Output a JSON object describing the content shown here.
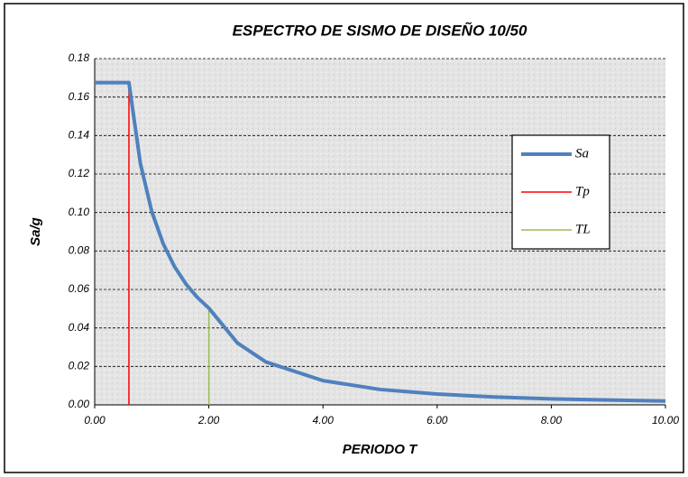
{
  "chart_data": {
    "type": "line",
    "title": "ESPECTRO DE SISMO DE DISEÑO 10/50",
    "x_label": "PERIODO T",
    "y_label": "Sa/g",
    "xlim": [
      0,
      10
    ],
    "ylim": [
      0,
      0.18
    ],
    "xticks": [
      {
        "value": 0,
        "label": "0.00"
      },
      {
        "value": 2,
        "label": "2.00"
      },
      {
        "value": 4,
        "label": "4.00"
      },
      {
        "value": 6,
        "label": "6.00"
      },
      {
        "value": 8,
        "label": "8.00"
      },
      {
        "value": 10,
        "label": "10.00"
      }
    ],
    "yticks": [
      {
        "value": 0,
        "label": "0.00"
      },
      {
        "value": 0.02,
        "label": "0.02"
      },
      {
        "value": 0.04,
        "label": "0.04"
      },
      {
        "value": 0.06,
        "label": "0.06"
      },
      {
        "value": 0.08,
        "label": "0.08"
      },
      {
        "value": 0.1,
        "label": "0.10"
      },
      {
        "value": 0.12,
        "label": "0.12"
      },
      {
        "value": 0.14,
        "label": "0.14"
      },
      {
        "value": 0.16,
        "label": "0.16"
      },
      {
        "value": 0.18,
        "label": "0.18"
      }
    ],
    "grid": true,
    "legend": "right",
    "series": [
      {
        "name": "Sa",
        "color": "#4f81bd",
        "width": 4,
        "x": [
          0,
          0.6,
          0.8,
          1.0,
          1.2,
          1.4,
          1.6,
          1.8,
          2.0,
          2.5,
          3,
          4,
          5,
          6,
          7,
          8,
          9,
          10
        ],
        "values": [
          0.1675,
          0.1675,
          0.1256,
          0.1005,
          0.0838,
          0.0718,
          0.0628,
          0.0558,
          0.0503,
          0.0322,
          0.0223,
          0.0126,
          0.008,
          0.0056,
          0.0041,
          0.0031,
          0.0025,
          0.002
        ]
      },
      {
        "name": "Tp",
        "color": "#ff0000",
        "width": 1.5,
        "x": [
          0.6,
          0.6
        ],
        "values": [
          0,
          0.1675
        ]
      },
      {
        "name": "TL",
        "color": "#9bbb59",
        "width": 1.5,
        "x": [
          2,
          2
        ],
        "values": [
          0,
          0.05
        ]
      }
    ]
  }
}
